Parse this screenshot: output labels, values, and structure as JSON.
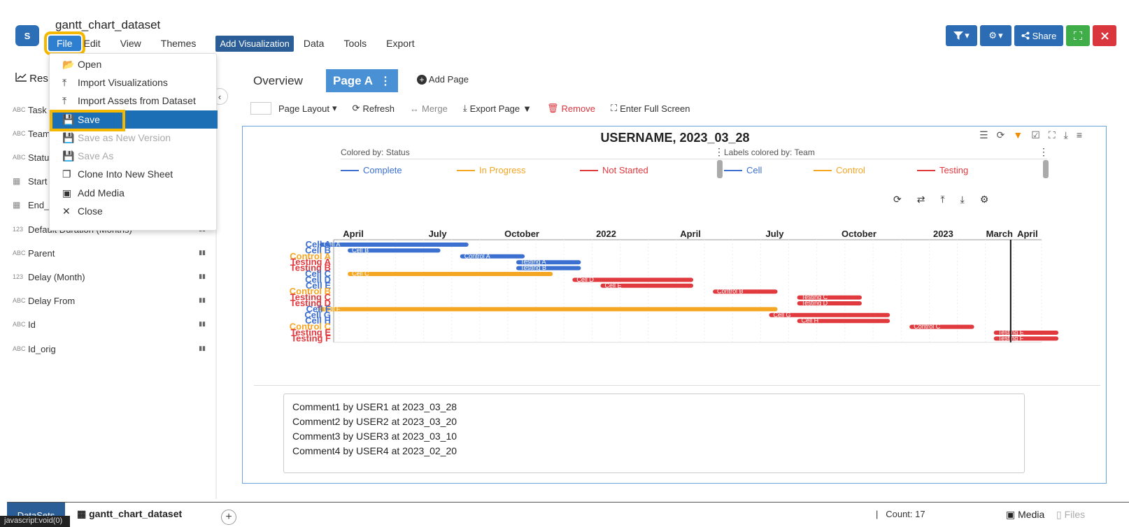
{
  "app": {
    "logo": "S",
    "title": "gantt_chart_dataset"
  },
  "menubar": {
    "file": "File",
    "edit": "Edit",
    "view": "View",
    "themes": "Themes",
    "add_visualization": "Add Visualization",
    "data": "Data",
    "tools": "Tools",
    "export": "Export"
  },
  "header_buttons": {
    "filter": "▾",
    "settings": "▾",
    "share": "Share"
  },
  "sidebar": {
    "header": "Res",
    "fields": [
      {
        "type": "ABC",
        "name": "Task"
      },
      {
        "type": "ABC",
        "name": "Team"
      },
      {
        "type": "ABC",
        "name": "Statu"
      },
      {
        "type": "cal",
        "name": "Start"
      },
      {
        "type": "cal",
        "name": "End_"
      },
      {
        "type": "123",
        "name": "Default Duration (Months)"
      },
      {
        "type": "ABC",
        "name": "Parent"
      },
      {
        "type": "123",
        "name": "Delay (Month)"
      },
      {
        "type": "ABC",
        "name": "Delay From"
      },
      {
        "type": "ABC",
        "name": "Id"
      },
      {
        "type": "ABC",
        "name": "Id_orig"
      }
    ]
  },
  "file_menu": {
    "items": [
      {
        "label": "Open",
        "icon": "folder-open-icon",
        "state": "normal"
      },
      {
        "label": "Import Visualizations",
        "icon": "upload-icon",
        "state": "normal"
      },
      {
        "label": "Import Assets from Dataset",
        "icon": "upload-icon",
        "state": "normal"
      },
      {
        "label": "Save",
        "icon": "save-icon",
        "state": "active"
      },
      {
        "label": "Save as New Version",
        "icon": "save-icon",
        "state": "disabled"
      },
      {
        "label": "Save As",
        "icon": "save-icon",
        "state": "disabled"
      },
      {
        "label": "Clone Into New Sheet",
        "icon": "clone-icon",
        "state": "normal"
      },
      {
        "label": "Add Media",
        "icon": "image-icon",
        "state": "normal"
      },
      {
        "label": "Close",
        "icon": "close-icon",
        "state": "normal"
      }
    ]
  },
  "tabs": {
    "overview": "Overview",
    "page_a": "Page A",
    "add_page": "Add Page"
  },
  "toolbar": {
    "page_layout": "Page Layout",
    "refresh": "Refresh",
    "merge": "Merge",
    "export_page": "Export Page",
    "remove": "Remove",
    "full_screen": "Enter Full Screen"
  },
  "chart_data": {
    "type": "bar",
    "subtype": "gantt",
    "title": "USERNAME, 2023_03_28",
    "colored_by": "Colored by: Status",
    "labels_colored_by": "Labels colored by: Team",
    "status_legend": [
      {
        "name": "Complete",
        "color": "#3b6fd0"
      },
      {
        "name": "In Progress",
        "color": "#f5a623"
      },
      {
        "name": "Not Started",
        "color": "#e0393e"
      }
    ],
    "team_legend": [
      {
        "name": "Cell",
        "color": "#3b6fd0"
      },
      {
        "name": "Control",
        "color": "#f5a623"
      },
      {
        "name": "Testing",
        "color": "#e0393e"
      }
    ],
    "x_ticks": [
      "April",
      "July",
      "October",
      "2022",
      "April",
      "July",
      "October",
      "2023",
      "March",
      "April"
    ],
    "x_range": [
      "2021-03",
      "2023-05"
    ],
    "today_marker": "2023-03-28",
    "tasks": [
      {
        "label": "Cell A",
        "team": "Cell",
        "bar_label": "Cell A",
        "status": "Complete",
        "start": "2021-03",
        "end": "2021-08"
      },
      {
        "label": "Cell B",
        "team": "Cell",
        "bar_label": "Cell B",
        "status": "Complete",
        "start": "2021-04",
        "end": "2021-07"
      },
      {
        "label": "Control A",
        "team": "Control",
        "bar_label": "Control A",
        "status": "Complete",
        "start": "2021-08",
        "end": "2021-10"
      },
      {
        "label": "Testing A",
        "team": "Testing",
        "bar_label": "Testing A",
        "status": "Complete",
        "start": "2021-10",
        "end": "2021-12"
      },
      {
        "label": "Testing B",
        "team": "Testing",
        "bar_label": "Testing B",
        "status": "Complete",
        "start": "2021-10",
        "end": "2021-12"
      },
      {
        "label": "Cell C",
        "team": "Cell",
        "bar_label": "Cell C",
        "status": "In Progress",
        "start": "2021-04",
        "end": "2021-11"
      },
      {
        "label": "Cell D",
        "team": "Cell",
        "bar_label": "Cell D",
        "status": "Not Started",
        "start": "2021-12",
        "end": "2022-04"
      },
      {
        "label": "Cell E",
        "team": "Cell",
        "bar_label": "Cell E",
        "status": "Not Started",
        "start": "2022-01",
        "end": "2022-04"
      },
      {
        "label": "Control B",
        "team": "Control",
        "bar_label": "Control B",
        "status": "Not Started",
        "start": "2022-05",
        "end": "2022-07"
      },
      {
        "label": "Testing C",
        "team": "Testing",
        "bar_label": "Testing C",
        "status": "Not Started",
        "start": "2022-08",
        "end": "2022-10"
      },
      {
        "label": "Testing D",
        "team": "Testing",
        "bar_label": "Testing D",
        "status": "Not Started",
        "start": "2022-08",
        "end": "2022-10"
      },
      {
        "label": "Cell F",
        "team": "Cell",
        "bar_label": "Cell F",
        "status": "In Progress",
        "start": "2021-03",
        "end": "2022-07"
      },
      {
        "label": "Cell G",
        "team": "Cell",
        "bar_label": "Cell G",
        "status": "Not Started",
        "start": "2022-07",
        "end": "2022-11"
      },
      {
        "label": "Cell H",
        "team": "Cell",
        "bar_label": "Cell H",
        "status": "Not Started",
        "start": "2022-08",
        "end": "2022-11"
      },
      {
        "label": "Control C",
        "team": "Control",
        "bar_label": "Control C",
        "status": "Not Started",
        "start": "2022-12",
        "end": "2023-02"
      },
      {
        "label": "Testing E",
        "team": "Testing",
        "bar_label": "Testing E",
        "status": "Not Started",
        "start": "2023-03",
        "end": "2023-05"
      },
      {
        "label": "Testing F",
        "team": "Testing",
        "bar_label": "Testing F",
        "status": "Not Started",
        "start": "2023-03",
        "end": "2023-05"
      }
    ]
  },
  "comments": [
    "Comment1 by USER1 at 2023_03_28",
    "Comment2 by USER2 at 2023_03_20",
    "Comment3 by USER3 at 2023_03_10",
    "Comment4 by USER4 at 2023_02_20"
  ],
  "bottom": {
    "datasets_tab": "DataSets",
    "dataset_name": "gantt_chart_dataset",
    "count": "Count: 17",
    "media": "Media",
    "files": "Files",
    "status": "javascript:void(0)"
  }
}
